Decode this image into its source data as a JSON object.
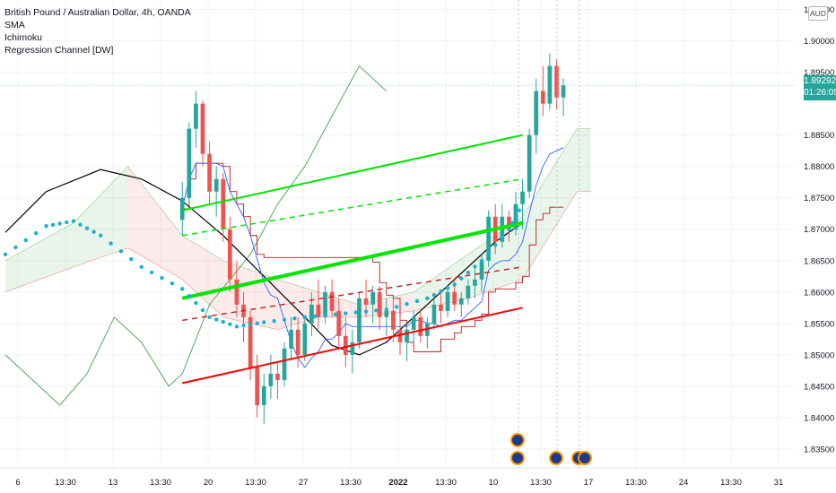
{
  "header": {
    "title": "British Pound / Australian Dollar, 4h, OANDA",
    "indicators": [
      "SMA",
      "Ichimoku",
      "Regression Channel [DW]"
    ]
  },
  "currency": "AUD",
  "last_price": {
    "value": "1.89292",
    "countdown": "01:26:05",
    "color": "#26a69a"
  },
  "colors": {
    "up": "#26a69a",
    "down": "#ef5350",
    "sma": "#000000",
    "dots": "#1bb0d2",
    "lagging": "#43a047",
    "tenkan": "#2962ff",
    "kijun": "#b71c1c",
    "channel_upper": "#00e600",
    "channel_mid": "#00e600",
    "channel_lower": "#ff0000",
    "cloud_bull": "#4caf50",
    "cloud_bear": "#ef5350"
  },
  "chart_data": {
    "type": "candlestick",
    "ylim": [
      1.832,
      1.9065
    ],
    "y_ticks": [
      "1.90500",
      "1.90000",
      "1.89500",
      "1.88500",
      "1.88000",
      "1.87500",
      "1.87000",
      "1.86500",
      "1.86000",
      "1.85500",
      "1.85000",
      "1.84500",
      "1.84000",
      "1.83500"
    ],
    "x_ticks": [
      "6",
      "13:30",
      "13",
      "13:30",
      "20",
      "13:30",
      "27",
      "13:30",
      "2022",
      "13:30",
      "10",
      "13:30",
      "17",
      "13:30",
      "24",
      "13:30",
      "31"
    ],
    "candles": [
      [
        1.8715,
        1.8775,
        1.869,
        1.875
      ],
      [
        1.875,
        1.887,
        1.874,
        1.886
      ],
      [
        1.886,
        1.892,
        1.883,
        1.89
      ],
      [
        1.89,
        1.8905,
        1.88,
        1.882
      ],
      [
        1.882,
        1.884,
        1.874,
        1.876
      ],
      [
        1.876,
        1.88,
        1.872,
        1.878
      ],
      [
        1.878,
        1.879,
        1.868,
        1.87
      ],
      [
        1.87,
        1.872,
        1.86,
        1.862
      ],
      [
        1.862,
        1.865,
        1.856,
        1.858
      ],
      [
        1.858,
        1.86,
        1.852,
        1.856
      ],
      [
        1.856,
        1.857,
        1.846,
        1.848
      ],
      [
        1.848,
        1.85,
        1.84,
        1.842
      ],
      [
        1.842,
        1.847,
        1.839,
        1.845
      ],
      [
        1.845,
        1.85,
        1.843,
        1.847
      ],
      [
        1.847,
        1.849,
        1.843,
        1.846
      ],
      [
        1.846,
        1.852,
        1.845,
        1.851
      ],
      [
        1.851,
        1.856,
        1.849,
        1.854
      ],
      [
        1.854,
        1.856,
        1.848,
        1.85
      ],
      [
        1.85,
        1.856,
        1.849,
        1.855
      ],
      [
        1.855,
        1.86,
        1.853,
        1.858
      ],
      [
        1.858,
        1.862,
        1.854,
        1.856
      ],
      [
        1.856,
        1.861,
        1.855,
        1.86
      ],
      [
        1.86,
        1.862,
        1.856,
        1.857
      ],
      [
        1.857,
        1.859,
        1.851,
        1.853
      ],
      [
        1.853,
        1.856,
        1.848,
        1.85
      ],
      [
        1.85,
        1.854,
        1.847,
        1.852
      ],
      [
        1.852,
        1.86,
        1.851,
        1.859
      ],
      [
        1.859,
        1.862,
        1.856,
        1.858
      ],
      [
        1.858,
        1.861,
        1.855,
        1.86
      ],
      [
        1.86,
        1.861,
        1.854,
        1.856
      ],
      [
        1.856,
        1.859,
        1.853,
        1.857
      ],
      [
        1.857,
        1.859,
        1.852,
        1.854
      ],
      [
        1.854,
        1.856,
        1.85,
        1.852
      ],
      [
        1.852,
        1.855,
        1.849,
        1.854
      ],
      [
        1.854,
        1.857,
        1.852,
        1.856
      ],
      [
        1.856,
        1.857,
        1.852,
        1.853
      ],
      [
        1.853,
        1.856,
        1.851,
        1.855
      ],
      [
        1.855,
        1.859,
        1.854,
        1.858
      ],
      [
        1.858,
        1.86,
        1.855,
        1.857
      ],
      [
        1.857,
        1.861,
        1.856,
        1.86
      ],
      [
        1.86,
        1.862,
        1.857,
        1.858
      ],
      [
        1.858,
        1.86,
        1.856,
        1.859
      ],
      [
        1.859,
        1.862,
        1.858,
        1.861
      ],
      [
        1.861,
        1.864,
        1.859,
        1.862
      ],
      [
        1.862,
        1.866,
        1.86,
        1.865
      ],
      [
        1.865,
        1.873,
        1.864,
        1.872
      ],
      [
        1.872,
        1.874,
        1.866,
        1.868
      ],
      [
        1.868,
        1.874,
        1.867,
        1.872
      ],
      [
        1.872,
        1.873,
        1.868,
        1.87
      ],
      [
        1.87,
        1.876,
        1.869,
        1.874
      ],
      [
        1.874,
        1.878,
        1.87,
        1.876
      ],
      [
        1.876,
        1.886,
        1.875,
        1.885
      ],
      [
        1.885,
        1.894,
        1.882,
        1.892
      ],
      [
        1.892,
        1.896,
        1.888,
        1.89
      ],
      [
        1.89,
        1.898,
        1.889,
        1.896
      ],
      [
        1.896,
        1.897,
        1.889,
        1.891
      ],
      [
        1.891,
        1.894,
        1.888,
        1.8929
      ]
    ],
    "x_range": [
      -26,
      90
    ],
    "sma_series": [
      [
        -26,
        1.8695
      ],
      [
        -20,
        1.876
      ],
      [
        -12,
        1.8795
      ],
      [
        -6,
        1.878
      ],
      [
        0,
        1.8745
      ],
      [
        6,
        1.869
      ],
      [
        12,
        1.8625
      ],
      [
        18,
        1.856
      ],
      [
        22,
        1.8515
      ],
      [
        26,
        1.85
      ],
      [
        30,
        1.852
      ],
      [
        36,
        1.858
      ],
      [
        42,
        1.864
      ],
      [
        46,
        1.868
      ],
      [
        50,
        1.871
      ]
    ],
    "dots_series": [
      [
        -26,
        1.866
      ],
      [
        -20,
        1.8705
      ],
      [
        -16,
        1.8713
      ],
      [
        -12,
        1.869
      ],
      [
        -6,
        1.864
      ],
      [
        0,
        1.8605
      ],
      [
        4,
        1.856
      ],
      [
        8,
        1.8545
      ],
      [
        12,
        1.8552
      ],
      [
        18,
        1.856
      ],
      [
        24,
        1.8566
      ],
      [
        30,
        1.8572
      ],
      [
        36,
        1.859
      ],
      [
        40,
        1.8612
      ],
      [
        44,
        1.865
      ],
      [
        48,
        1.87
      ],
      [
        50,
        1.874
      ]
    ],
    "lagging_series": [
      [
        -26,
        1.85
      ],
      [
        -22,
        1.846
      ],
      [
        -18,
        1.842
      ],
      [
        -14,
        1.847
      ],
      [
        -10,
        1.856
      ],
      [
        -6,
        1.852
      ],
      [
        -2,
        1.845
      ],
      [
        0,
        1.847
      ],
      [
        4,
        1.858
      ],
      [
        10,
        1.866
      ],
      [
        14,
        1.874
      ],
      [
        18,
        1.88
      ],
      [
        22,
        1.888
      ],
      [
        26,
        1.896
      ],
      [
        28,
        1.894
      ],
      [
        30,
        1.892
      ]
    ],
    "cloud": [
      [
        -26,
        1.865,
        1.86
      ],
      [
        -16,
        1.871,
        1.864
      ],
      [
        -8,
        1.88,
        1.867
      ],
      [
        0,
        1.869,
        1.862
      ],
      [
        6,
        1.865,
        1.856
      ],
      [
        14,
        1.862,
        1.854
      ],
      [
        20,
        1.86,
        1.856
      ],
      [
        26,
        1.858,
        1.856
      ],
      [
        34,
        1.86,
        1.857
      ],
      [
        42,
        1.866,
        1.859
      ],
      [
        50,
        1.872,
        1.862
      ],
      [
        58,
        1.886,
        1.876
      ],
      [
        60,
        1.886,
        1.876
      ]
    ],
    "channel": {
      "x": [
        0,
        50
      ],
      "upper": [
        1.873,
        1.885
      ],
      "mid_upper": [
        1.869,
        1.878
      ],
      "mid": [
        1.859,
        1.871
      ],
      "mid_lower": [
        1.8555,
        1.864
      ],
      "lower": [
        1.8455,
        1.8575
      ]
    }
  }
}
